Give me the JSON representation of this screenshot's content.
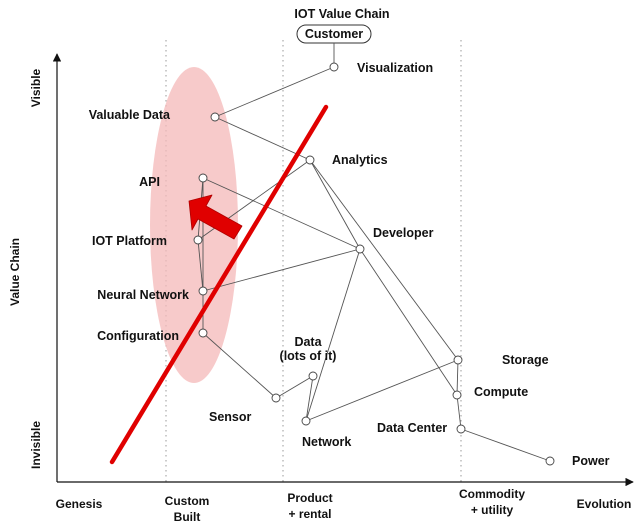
{
  "title": "IOT Value Chain",
  "anchor": "Customer",
  "axes": {
    "y_label": "Value Chain",
    "y_top": "Visible",
    "y_bottom": "Invisible",
    "x_stages": [
      {
        "id": "genesis",
        "lines": [
          "Genesis"
        ]
      },
      {
        "id": "custom",
        "lines": [
          "Custom",
          "Built"
        ]
      },
      {
        "id": "product",
        "lines": [
          "Product",
          "+ rental"
        ]
      },
      {
        "id": "commodity",
        "lines": [
          "Commodity",
          "+ utility"
        ]
      },
      {
        "id": "evolution",
        "lines": [
          "Evolution"
        ]
      }
    ]
  },
  "components": [
    {
      "id": "visualization",
      "lines": [
        "Visualization"
      ]
    },
    {
      "id": "valuable_data",
      "lines": [
        "Valuable Data"
      ]
    },
    {
      "id": "analytics",
      "lines": [
        "Analytics"
      ]
    },
    {
      "id": "api",
      "lines": [
        "API"
      ]
    },
    {
      "id": "developer",
      "lines": [
        "Developer"
      ]
    },
    {
      "id": "iot_platform",
      "lines": [
        "IOT Platform"
      ]
    },
    {
      "id": "neural_network",
      "lines": [
        "Neural Network"
      ]
    },
    {
      "id": "configuration",
      "lines": [
        "Configuration"
      ]
    },
    {
      "id": "data",
      "lines": [
        "Data",
        "(lots of it)"
      ]
    },
    {
      "id": "storage",
      "lines": [
        "Storage"
      ]
    },
    {
      "id": "compute",
      "lines": [
        "Compute"
      ]
    },
    {
      "id": "sensor",
      "lines": [
        "Sensor"
      ]
    },
    {
      "id": "network",
      "lines": [
        "Network"
      ]
    },
    {
      "id": "data_center",
      "lines": [
        "Data Center"
      ]
    },
    {
      "id": "power",
      "lines": [
        "Power"
      ]
    }
  ],
  "links": [
    [
      "customer",
      "visualization"
    ],
    [
      "visualization",
      "valuable_data"
    ],
    [
      "valuable_data",
      "analytics"
    ],
    [
      "analytics",
      "iot_platform"
    ],
    [
      "analytics",
      "developer"
    ],
    [
      "analytics",
      "storage"
    ],
    [
      "api",
      "iot_platform"
    ],
    [
      "api",
      "developer"
    ],
    [
      "api",
      "neural_network"
    ],
    [
      "iot_platform",
      "neural_network"
    ],
    [
      "neural_network",
      "configuration"
    ],
    [
      "neural_network",
      "developer"
    ],
    [
      "developer",
      "network"
    ],
    [
      "developer",
      "compute"
    ],
    [
      "configuration",
      "sensor"
    ],
    [
      "sensor",
      "data"
    ],
    [
      "data",
      "network"
    ],
    [
      "network",
      "storage"
    ],
    [
      "storage",
      "compute"
    ],
    [
      "compute",
      "data_center"
    ],
    [
      "data_center",
      "power"
    ]
  ],
  "highlight": {
    "meaning": "proposed move of API toward custom built",
    "colors": {
      "zone": "#f4b8b8",
      "line": "#e00000",
      "arrow": "#e00000"
    }
  }
}
